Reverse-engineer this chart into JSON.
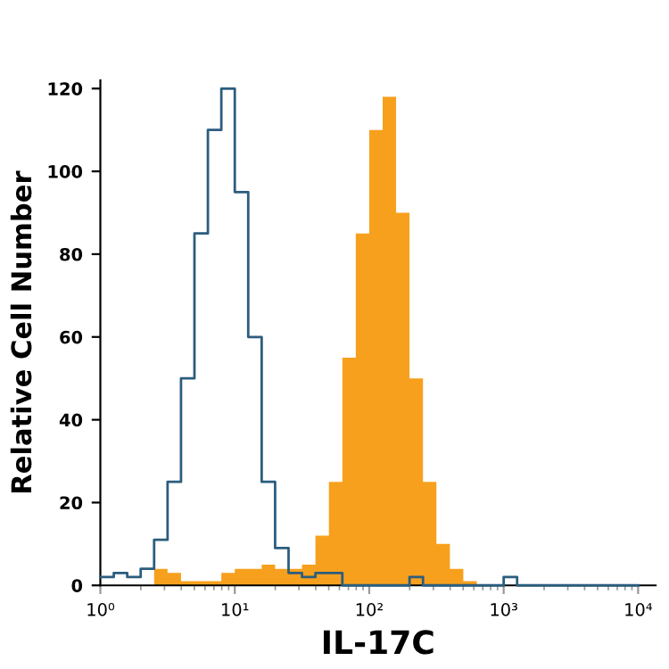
{
  "chart_data": {
    "type": "histogram",
    "xlabel": "IL-17C",
    "ylabel": "Relative Cell Number",
    "log": "x",
    "bins": [
      1,
      1.259,
      1.585,
      1.995,
      2.512,
      3.162,
      3.981,
      5.012,
      6.31,
      7.943,
      10,
      12.59,
      15.85,
      19.95,
      25.12,
      31.62,
      39.81,
      50.12,
      63.1,
      79.43,
      100,
      125.9,
      158.5,
      199.5,
      251.2,
      316.2,
      398.1,
      501.2,
      631,
      794.3,
      1000,
      1259,
      1585,
      1995,
      2512,
      3162,
      3981,
      5012,
      6310,
      7943,
      10000,
      12589
    ],
    "series": [
      {
        "color": "#f7a01d",
        "values": [
          0,
          0,
          0,
          0,
          4,
          3,
          1,
          1,
          1,
          3,
          4,
          4,
          5,
          4,
          4,
          5,
          12,
          25,
          55,
          85,
          110,
          118,
          90,
          50,
          25,
          10,
          4,
          1,
          0,
          0,
          0,
          0,
          0,
          0,
          0,
          0,
          0,
          0,
          0,
          0,
          0
        ]
      },
      {
        "type": "step",
        "color": "#2b5d7e",
        "x": [
          1,
          1.259,
          1.585,
          1.995,
          2.512,
          3.162,
          3.981,
          5.012,
          6.31,
          7.943,
          10,
          12.59,
          15.85,
          19.95,
          25.12,
          31.62,
          39.81,
          50.12,
          63.1,
          79.43,
          100,
          125.9,
          158.5,
          199.5,
          251.2,
          316.2,
          398.1,
          501.2,
          631,
          794.3,
          1000,
          1259,
          1585,
          1995,
          2512,
          3162,
          3981,
          5012,
          6310,
          7943,
          10000
        ],
        "values": [
          2,
          3,
          2,
          4,
          11,
          25,
          50,
          85,
          110,
          120,
          95,
          60,
          25,
          9,
          3,
          2,
          3,
          3,
          0,
          0,
          0,
          0,
          0,
          2,
          0,
          0,
          0,
          0,
          0,
          0,
          2,
          0,
          0,
          0,
          0,
          0,
          0,
          0,
          0,
          0,
          0
        ]
      }
    ],
    "xlim": [
      1,
      13500
    ],
    "xticks": [
      {
        "value": 1,
        "label": "10⁰"
      },
      {
        "value": 10,
        "label": "10¹"
      },
      {
        "value": 100,
        "label": "10²"
      },
      {
        "value": 1000,
        "label": "10³"
      },
      {
        "value": 10000,
        "label": "10⁴"
      }
    ],
    "ylim": [
      0,
      122
    ],
    "yticks": [
      0,
      20,
      40,
      60,
      80,
      100,
      120
    ],
    "grid": false,
    "legend": false
  }
}
